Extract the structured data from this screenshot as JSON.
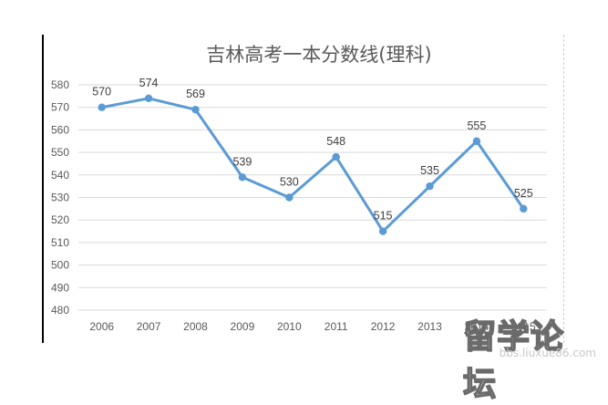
{
  "chart_data": {
    "type": "line",
    "title": "吉林高考一本分数线(理科)",
    "categories": [
      "2006",
      "2007",
      "2008",
      "2009",
      "2010",
      "2011",
      "2012",
      "2013",
      "2014",
      "2015"
    ],
    "series": [
      {
        "values": [
          570,
          574,
          569,
          539,
          530,
          548,
          515,
          535,
          555,
          525
        ]
      }
    ],
    "data_labels": [
      "570",
      "574",
      "569",
      "539",
      "530",
      "548",
      "515",
      "535",
      "555",
      "525"
    ],
    "ylim": [
      480,
      580
    ],
    "yticks": [
      480,
      490,
      500,
      510,
      520,
      530,
      540,
      550,
      560,
      570,
      580
    ],
    "ytick_labels": [
      "480",
      "490",
      "500",
      "510",
      "520",
      "530",
      "540",
      "550",
      "560",
      "570",
      "580"
    ],
    "grid": true,
    "legend": "none",
    "colors": {
      "line": "#5b9bd5",
      "grid": "#d9d9d9",
      "text": "#595959"
    }
  },
  "watermark": {
    "main": "留学论坛",
    "url": "bbs.liuxue86.com"
  }
}
